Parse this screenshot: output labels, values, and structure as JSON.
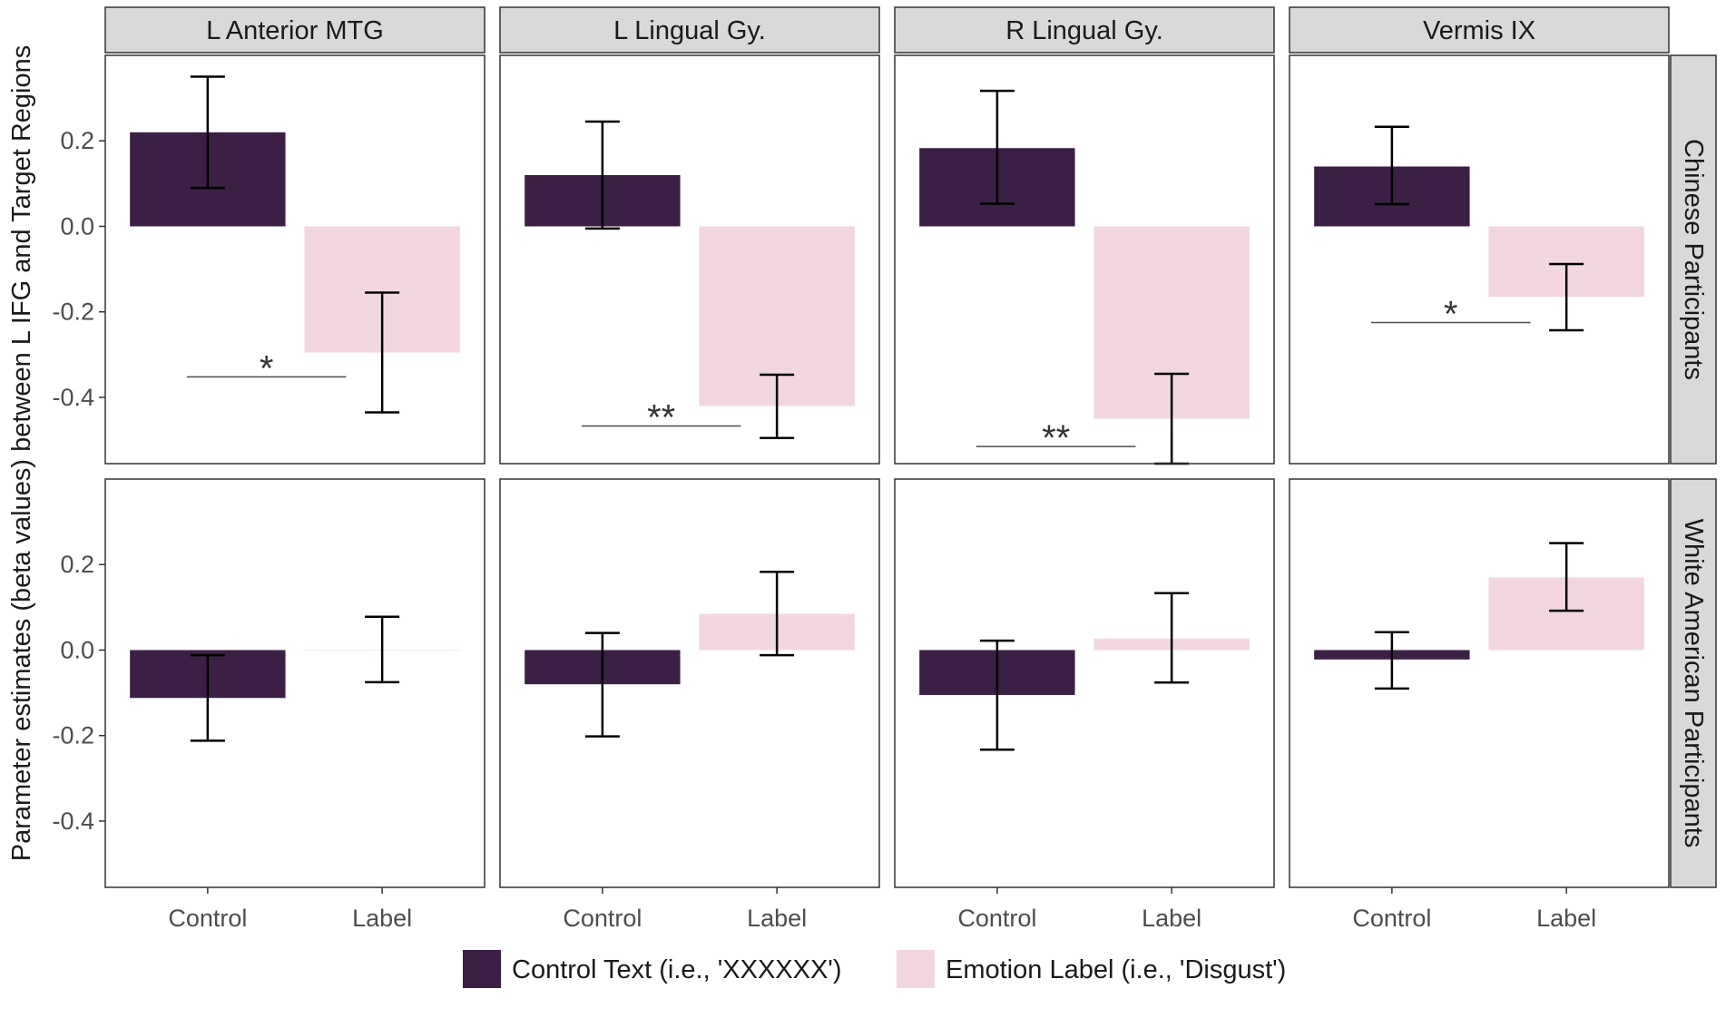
{
  "chart_data": {
    "type": "bar",
    "facet_columns": [
      "L Anterior MTG",
      "L Lingual Gy.",
      "R Lingual Gy.",
      "Vermis IX"
    ],
    "facet_rows": [
      "Chinese Participants",
      "White American Participants"
    ],
    "categories": [
      "Control",
      "Label"
    ],
    "ylabel": "Parameter estimates (beta values) between L IFG and Target Regions",
    "xlabel": "",
    "ylim": [
      -0.555,
      0.4
    ],
    "yticks": [
      0.2,
      0.0,
      -0.2,
      -0.4
    ],
    "ytick_labels": [
      "0.2",
      "0.0",
      "-0.2",
      "-0.4"
    ],
    "grid": false,
    "legend_position": "bottom",
    "colors": {
      "control": "#3b1f45",
      "label": "#f2d7e1"
    },
    "series": [
      {
        "name": "Control Text (i.e., 'XXXXXX')",
        "key": "control"
      },
      {
        "name": "Emotion Label (i.e., 'Disgust')",
        "key": "label"
      }
    ],
    "panels": [
      {
        "row": "Chinese Participants",
        "column": "L Anterior MTG",
        "values": [
          0.22,
          -0.295
        ],
        "errors": [
          [
            0.09,
            0.35
          ],
          [
            -0.435,
            -0.155
          ]
        ],
        "significance": "*",
        "sig_y": -0.352
      },
      {
        "row": "Chinese Participants",
        "column": "L Lingual Gy.",
        "values": [
          0.12,
          -0.42
        ],
        "errors": [
          [
            -0.005,
            0.245
          ],
          [
            -0.495,
            -0.347
          ]
        ],
        "significance": "**",
        "sig_y": -0.467
      },
      {
        "row": "Chinese Participants",
        "column": "R Lingual Gy.",
        "values": [
          0.183,
          -0.45
        ],
        "errors": [
          [
            0.053,
            0.317
          ],
          [
            -0.555,
            -0.345
          ]
        ],
        "significance": "**",
        "sig_y": -0.515
      },
      {
        "row": "Chinese Participants",
        "column": "Vermis IX",
        "values": [
          0.14,
          -0.165
        ],
        "errors": [
          [
            0.052,
            0.233
          ],
          [
            -0.243,
            -0.088
          ]
        ],
        "significance": "*",
        "sig_y": -0.225
      },
      {
        "row": "White American Participants",
        "column": "L Anterior MTG",
        "values": [
          -0.112,
          0.0
        ],
        "errors": [
          [
            -0.212,
            -0.012
          ],
          [
            -0.075,
            0.078
          ]
        ],
        "significance": "",
        "sig_y": null
      },
      {
        "row": "White American Participants",
        "column": "L Lingual Gy.",
        "values": [
          -0.08,
          0.085
        ],
        "errors": [
          [
            -0.202,
            0.04
          ],
          [
            -0.012,
            0.183
          ]
        ],
        "significance": "",
        "sig_y": null
      },
      {
        "row": "White American Participants",
        "column": "R Lingual Gy.",
        "values": [
          -0.105,
          0.027
        ],
        "errors": [
          [
            -0.233,
            0.022
          ],
          [
            -0.076,
            0.133
          ]
        ],
        "significance": "",
        "sig_y": null
      },
      {
        "row": "White American Participants",
        "column": "Vermis IX",
        "values": [
          -0.022,
          0.17
        ],
        "errors": [
          [
            -0.09,
            0.042
          ],
          [
            0.092,
            0.25
          ]
        ],
        "significance": "",
        "sig_y": null
      }
    ]
  }
}
